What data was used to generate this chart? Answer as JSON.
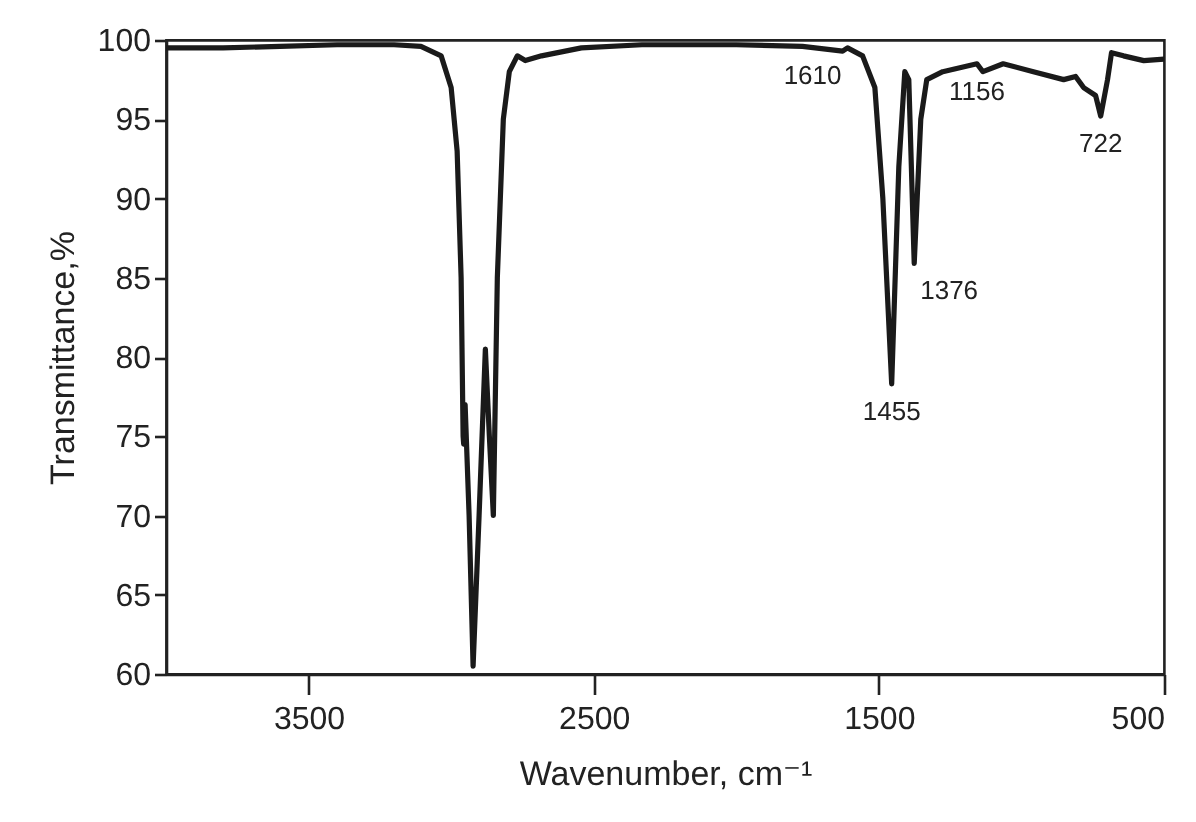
{
  "chart_data": {
    "type": "line",
    "xlabel": "Wavenumber, cm⁻¹",
    "ylabel": "Transmittance,%",
    "xlim": [
      4000,
      500
    ],
    "xticks": [
      3500,
      2500,
      1500,
      500
    ],
    "ylim": [
      60,
      100
    ],
    "yticks": [
      60,
      65,
      70,
      75,
      80,
      85,
      90,
      95,
      100
    ],
    "grid": false,
    "series": [
      {
        "color": "#1a1a1a",
        "x": [
          4000,
          3800,
          3600,
          3400,
          3200,
          3106,
          3035,
          3000,
          2979,
          2965,
          2958,
          2956,
          2951,
          2937,
          2923,
          2902,
          2880,
          2866,
          2852,
          2838,
          2817,
          2796,
          2768,
          2740,
          2683,
          2543,
          2331,
          2000,
          1768,
          1627,
          1610,
          1557,
          1514,
          1486,
          1455,
          1430,
          1409,
          1395,
          1376,
          1353,
          1332,
          1276,
          1156,
          1135,
          1064,
          958,
          852,
          810,
          782,
          740,
          722,
          698,
          684,
          642,
          571,
          500
        ],
        "values": [
          99.5,
          99.5,
          99.6,
          99.7,
          99.7,
          99.6,
          99,
          97,
          93,
          85,
          75,
          74.5,
          77,
          70,
          60.5,
          70,
          80.5,
          75,
          70,
          85,
          95,
          98,
          99,
          98.7,
          99,
          99.5,
          99.7,
          99.7,
          99.6,
          99.3,
          99.5,
          99,
          97,
          90,
          78.3,
          92,
          98,
          97.5,
          85.9,
          95,
          97.5,
          98,
          98.5,
          98,
          98.5,
          98,
          97.5,
          97.7,
          97,
          96.5,
          95.2,
          97.5,
          99.2,
          99,
          98.7,
          98.8
        ]
      }
    ],
    "annotations": [
      {
        "text": "1610",
        "x": 1610,
        "y": 99.5
      },
      {
        "text": "1156",
        "x": 1156,
        "y": 98.5
      },
      {
        "text": "722",
        "x": 722,
        "y": 95.2
      },
      {
        "text": "1376",
        "x": 1376,
        "y": 85.9
      },
      {
        "text": "1455",
        "x": 1455,
        "y": 78.3
      }
    ]
  }
}
